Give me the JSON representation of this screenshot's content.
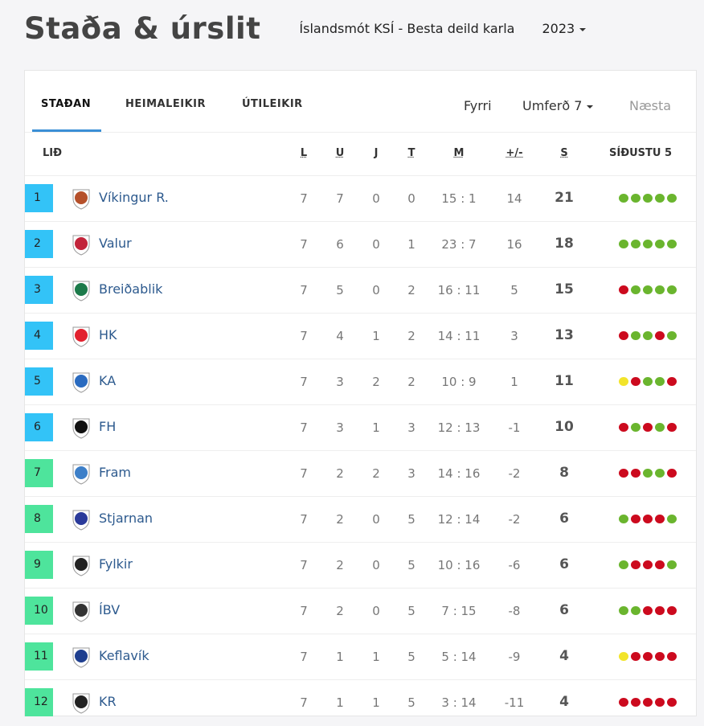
{
  "header": {
    "title": "Staða & úrslit",
    "competition": "Íslandsmót KSÍ - Besta deild karla",
    "year": "2023"
  },
  "tabs": [
    {
      "label": "STAÐAN",
      "active": true
    },
    {
      "label": "HEIMALEIKIR"
    },
    {
      "label": "ÚTILEIKIR"
    }
  ],
  "round_nav": {
    "prev": "Fyrri",
    "current": "Umferð 7",
    "next": "Næsta"
  },
  "columns": {
    "team": "LIÐ",
    "played": "L",
    "won": "U",
    "drawn": "J",
    "lost": "T",
    "goals": "M",
    "diff": "+/-",
    "points": "S",
    "form": "SÍÐUSTU 5"
  },
  "colors": {
    "rank_top": "#33c3f7",
    "rank_bottom": "#4ee49c",
    "win": "#6ab52e",
    "loss": "#cc0a1e",
    "draw": "#f2e42a",
    "accent": "#3b8fd6",
    "team_link": "#2d5a8e"
  },
  "rows": [
    {
      "rank": "1",
      "team": "Víkingur R.",
      "p": "7",
      "w": "7",
      "d": "0",
      "l": "0",
      "goals": "15 : 1",
      "diff": "14",
      "pts": "21",
      "form": "WWWWW",
      "logo": "#b5502a"
    },
    {
      "rank": "2",
      "team": "Valur",
      "p": "7",
      "w": "6",
      "d": "0",
      "l": "1",
      "goals": "23 : 7",
      "diff": "16",
      "pts": "18",
      "form": "WWWWW",
      "logo": "#c2243a"
    },
    {
      "rank": "3",
      "team": "Breiðablik",
      "p": "7",
      "w": "5",
      "d": "0",
      "l": "2",
      "goals": "16 : 11",
      "diff": "5",
      "pts": "15",
      "form": "LWWWW",
      "logo": "#1c7a4a"
    },
    {
      "rank": "4",
      "team": "HK",
      "p": "7",
      "w": "4",
      "d": "1",
      "l": "2",
      "goals": "14 : 11",
      "diff": "3",
      "pts": "13",
      "form": "LWWLW",
      "logo": "#e2212e"
    },
    {
      "rank": "5",
      "team": "KA",
      "p": "7",
      "w": "3",
      "d": "2",
      "l": "2",
      "goals": "10 : 9",
      "diff": "1",
      "pts": "11",
      "form": "DLWWL",
      "logo": "#2a6bc0"
    },
    {
      "rank": "6",
      "team": "FH",
      "p": "7",
      "w": "3",
      "d": "1",
      "l": "3",
      "goals": "12 : 13",
      "diff": "-1",
      "pts": "10",
      "form": "LWLWL",
      "logo": "#111111"
    },
    {
      "rank": "7",
      "team": "Fram",
      "p": "7",
      "w": "2",
      "d": "2",
      "l": "3",
      "goals": "14 : 16",
      "diff": "-2",
      "pts": "8",
      "form": "LLWWL",
      "logo": "#3d7fc8"
    },
    {
      "rank": "8",
      "team": "Stjarnan",
      "p": "7",
      "w": "2",
      "d": "0",
      "l": "5",
      "goals": "12 : 14",
      "diff": "-2",
      "pts": "6",
      "form": "WLLLW",
      "logo": "#2a3a9a"
    },
    {
      "rank": "9",
      "team": "Fylkir",
      "p": "7",
      "w": "2",
      "d": "0",
      "l": "5",
      "goals": "10 : 16",
      "diff": "-6",
      "pts": "6",
      "form": "WLLLW",
      "logo": "#222222"
    },
    {
      "rank": "10",
      "team": "ÍBV",
      "p": "7",
      "w": "2",
      "d": "0",
      "l": "5",
      "goals": "7 : 15",
      "diff": "-8",
      "pts": "6",
      "form": "WWLLL",
      "logo": "#333333"
    },
    {
      "rank": "11",
      "team": "Keflavík",
      "p": "7",
      "w": "1",
      "d": "1",
      "l": "5",
      "goals": "5 : 14",
      "diff": "-9",
      "pts": "4",
      "form": "DLLLL",
      "logo": "#1f3f8f"
    },
    {
      "rank": "12",
      "team": "KR",
      "p": "7",
      "w": "1",
      "d": "1",
      "l": "5",
      "goals": "3 : 14",
      "diff": "-11",
      "pts": "4",
      "form": "LLLLL",
      "logo": "#222222"
    }
  ]
}
